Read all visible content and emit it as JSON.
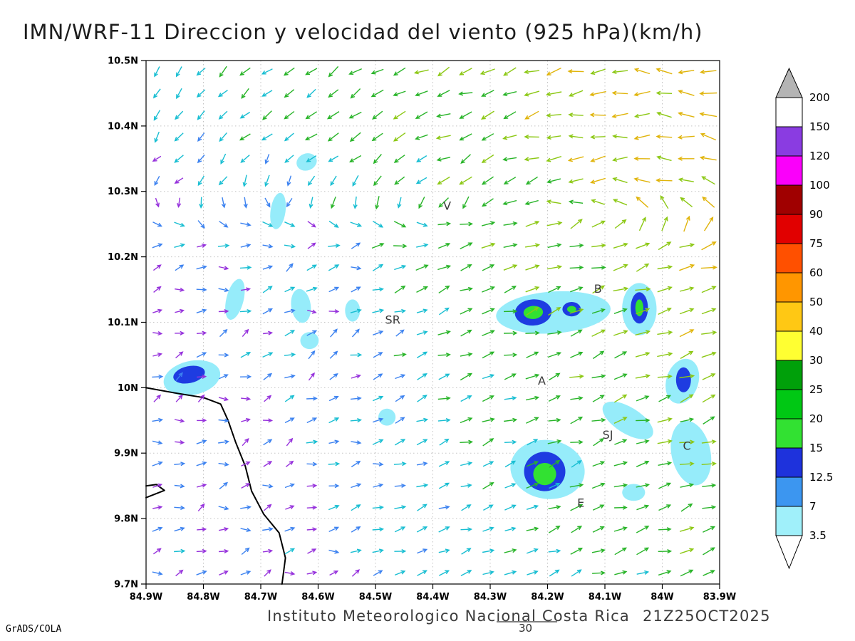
{
  "title": "IMN/WRF-11 Direccion y velocidad del viento (925 hPa)(km/h)",
  "footer": {
    "caption": "Instituto Meteorologico Nacional Costa Rica",
    "timestamp": "21Z25OCT2025",
    "watermark": "GrADS/COLA",
    "overlay_label": "30"
  },
  "chart_data": {
    "type": "vector_field",
    "variable": "Direccion y velocidad del viento",
    "level_hpa": 925,
    "units": "km/h",
    "x_axis": {
      "start": 84.9,
      "end": 83.9,
      "direction": "W",
      "ticks": [
        {
          "v": 84.9,
          "label": "84.9W"
        },
        {
          "v": 84.8,
          "label": "84.8W"
        },
        {
          "v": 84.7,
          "label": "84.7W"
        },
        {
          "v": 84.6,
          "label": "84.6W"
        },
        {
          "v": 84.5,
          "label": "84.5W"
        },
        {
          "v": 84.4,
          "label": "84.4W"
        },
        {
          "v": 84.3,
          "label": "84.3W"
        },
        {
          "v": 84.2,
          "label": "84.2W"
        },
        {
          "v": 84.1,
          "label": "84.1W"
        },
        {
          "v": 84.0,
          "label": "84W"
        },
        {
          "v": 83.9,
          "label": "83.9W"
        }
      ]
    },
    "y_axis": {
      "start": 10.5,
      "end": 9.7,
      "direction": "N",
      "ticks": [
        {
          "v": 10.5,
          "label": "10.5N"
        },
        {
          "v": 10.4,
          "label": "10.4N"
        },
        {
          "v": 10.3,
          "label": "10.3N"
        },
        {
          "v": 10.2,
          "label": "10.2N"
        },
        {
          "v": 10.1,
          "label": "10.1N"
        },
        {
          "v": 10.0,
          "label": "10N"
        },
        {
          "v": 9.9,
          "label": "9.9N"
        },
        {
          "v": 9.8,
          "label": "9.8N"
        },
        {
          "v": 9.7,
          "label": "9.7N"
        }
      ]
    },
    "legend": {
      "labels_top_to_bottom": [
        "200",
        "150",
        "120",
        "100",
        "90",
        "75",
        "60",
        "50",
        "40",
        "30",
        "25",
        "20",
        "15",
        "12.5",
        "7",
        "3.5"
      ],
      "colors_top_to_bottom": [
        "#b4b4b4",
        "#ffffff",
        "#8a3ce1",
        "#fa00fa",
        "#a00000",
        "#e10000",
        "#ff5000",
        "#ff9600",
        "#ffc814",
        "#ffff32",
        "#00a00a",
        "#00c814",
        "#32e132",
        "#1e32dc",
        "#3c96f0",
        "#a0f0fa",
        "#ffffff"
      ]
    },
    "stations": [
      {
        "id": "V",
        "lon": 84.375,
        "lat": 10.272
      },
      {
        "id": "B",
        "lon": 84.112,
        "lat": 10.145
      },
      {
        "id": "SR",
        "lon": 84.47,
        "lat": 10.098
      },
      {
        "id": "A",
        "lon": 84.21,
        "lat": 10.005
      },
      {
        "id": "SJ",
        "lon": 84.095,
        "lat": 9.922
      },
      {
        "id": "C",
        "lon": 83.957,
        "lat": 9.905
      },
      {
        "id": "E",
        "lon": 84.142,
        "lat": 9.818
      }
    ],
    "shade_palette": {
      "cyan": "#96ecfa",
      "blue": "#1e3ce1",
      "green": "#32e132"
    },
    "shaded_regions": [
      {
        "lon": 84.62,
        "lat": 10.345,
        "rx": 0.018,
        "ry": 0.013,
        "rot": -20,
        "level": "cyan"
      },
      {
        "lon": 84.67,
        "lat": 10.27,
        "rx": 0.013,
        "ry": 0.028,
        "rot": 8,
        "level": "cyan"
      },
      {
        "lon": 84.745,
        "lat": 10.135,
        "rx": 0.015,
        "ry": 0.032,
        "rot": 14,
        "level": "cyan"
      },
      {
        "lon": 84.63,
        "lat": 10.125,
        "rx": 0.017,
        "ry": 0.026,
        "rot": -8,
        "level": "cyan"
      },
      {
        "lon": 84.54,
        "lat": 10.118,
        "rx": 0.013,
        "ry": 0.017,
        "rot": 0,
        "level": "cyan"
      },
      {
        "lon": 84.615,
        "lat": 10.072,
        "rx": 0.016,
        "ry": 0.013,
        "rot": 0,
        "level": "cyan"
      },
      {
        "lon": 84.82,
        "lat": 10.015,
        "rx": 0.05,
        "ry": 0.026,
        "rot": -12,
        "level": "cyan"
      },
      {
        "lon": 84.48,
        "lat": 9.955,
        "rx": 0.015,
        "ry": 0.013,
        "rot": 0,
        "level": "cyan"
      },
      {
        "lon": 84.19,
        "lat": 10.115,
        "rx": 0.1,
        "ry": 0.032,
        "rot": -4,
        "level": "cyan"
      },
      {
        "lon": 84.04,
        "lat": 10.12,
        "rx": 0.03,
        "ry": 0.04,
        "rot": 0,
        "level": "cyan"
      },
      {
        "lon": 83.965,
        "lat": 10.01,
        "rx": 0.028,
        "ry": 0.035,
        "rot": 18,
        "level": "cyan"
      },
      {
        "lon": 83.95,
        "lat": 9.9,
        "rx": 0.034,
        "ry": 0.05,
        "rot": -12,
        "level": "cyan"
      },
      {
        "lon": 84.2,
        "lat": 9.875,
        "rx": 0.065,
        "ry": 0.045,
        "rot": 8,
        "level": "cyan"
      },
      {
        "lon": 84.06,
        "lat": 9.95,
        "rx": 0.05,
        "ry": 0.02,
        "rot": 32,
        "level": "cyan"
      },
      {
        "lon": 84.05,
        "lat": 9.84,
        "rx": 0.02,
        "ry": 0.013,
        "rot": 0,
        "level": "cyan"
      },
      {
        "lon": 84.225,
        "lat": 10.115,
        "rx": 0.032,
        "ry": 0.02,
        "rot": -4,
        "level": "blue"
      },
      {
        "lon": 84.158,
        "lat": 10.12,
        "rx": 0.016,
        "ry": 0.011,
        "rot": 0,
        "level": "blue"
      },
      {
        "lon": 84.04,
        "lat": 10.122,
        "rx": 0.015,
        "ry": 0.024,
        "rot": 0,
        "level": "blue"
      },
      {
        "lon": 84.825,
        "lat": 10.02,
        "rx": 0.028,
        "ry": 0.013,
        "rot": -12,
        "level": "blue"
      },
      {
        "lon": 84.205,
        "lat": 9.872,
        "rx": 0.036,
        "ry": 0.03,
        "rot": 0,
        "level": "blue"
      },
      {
        "lon": 83.963,
        "lat": 10.012,
        "rx": 0.013,
        "ry": 0.019,
        "rot": 0,
        "level": "blue"
      },
      {
        "lon": 84.225,
        "lat": 10.115,
        "rx": 0.017,
        "ry": 0.01,
        "rot": -4,
        "level": "green"
      },
      {
        "lon": 84.158,
        "lat": 10.12,
        "rx": 0.008,
        "ry": 0.005,
        "rot": 0,
        "level": "green"
      },
      {
        "lon": 84.04,
        "lat": 10.122,
        "rx": 0.007,
        "ry": 0.013,
        "rot": 0,
        "level": "green"
      },
      {
        "lon": 84.205,
        "lat": 9.868,
        "rx": 0.02,
        "ry": 0.017,
        "rot": 0,
        "level": "green"
      }
    ],
    "coastline": [
      [
        [
          84.9,
          10.0
        ],
        [
          84.85,
          9.992
        ],
        [
          84.8,
          9.985
        ],
        [
          84.77,
          9.975
        ],
        [
          84.757,
          9.95
        ],
        [
          84.744,
          9.917
        ],
        [
          84.727,
          9.88
        ],
        [
          84.716,
          9.842
        ],
        [
          84.695,
          9.807
        ],
        [
          84.668,
          9.778
        ],
        [
          84.657,
          9.74
        ],
        [
          84.663,
          9.7
        ]
      ],
      [
        [
          84.9,
          9.832
        ],
        [
          84.868,
          9.843
        ],
        [
          84.882,
          9.852
        ],
        [
          84.9,
          9.85
        ]
      ]
    ],
    "arrow_palette": {
      "thresholds": [
        5,
        10,
        17,
        27,
        35,
        45,
        58
      ],
      "colors": [
        "#9632dc",
        "#3c82f0",
        "#18bed2",
        "#28b428",
        "#8cc814",
        "#e0b40a",
        "#ff8c14",
        "#e63214"
      ]
    },
    "flow_model": {
      "north_center": [
        0.85,
        0.2
      ],
      "shear_y": 0.6,
      "shear_width": 0.22,
      "south_dir": [
        0.92,
        0.3
      ],
      "speed": {
        "base": 6,
        "gain": 34,
        "ax": 0.9,
        "ay": 0.55,
        "off": 0.35
      },
      "grid": {
        "cols": 26,
        "rows": 24
      }
    }
  }
}
